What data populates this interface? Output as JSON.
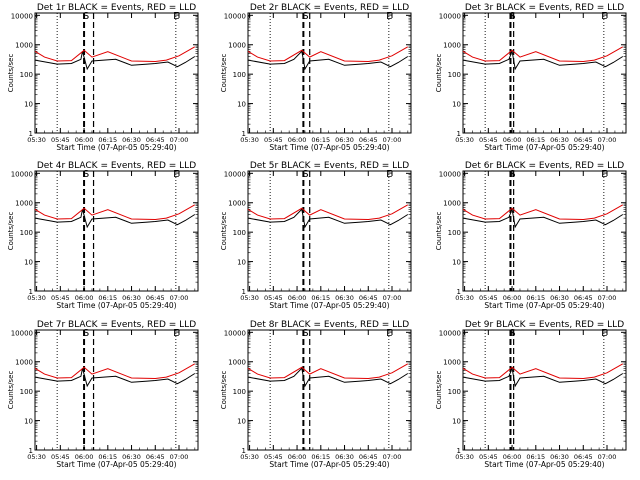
{
  "chart_data": [
    {
      "type": "line",
      "title": "Det 1r BLACK = Events, RED = LLD",
      "xlabel": "Start Time (07-Apr-05 05:29:40)",
      "ylabel": "Counts/sec",
      "marker_S": "S",
      "marker_right": "E",
      "dashed_at": [
        "06:00",
        "06:06"
      ],
      "dotted_at": [
        "05:43",
        "06:58"
      ],
      "x_ticks": [
        "05:30",
        "05:45",
        "06:00",
        "06:15",
        "06:30",
        "06:45",
        "07:00"
      ],
      "y_ticks": [
        "1",
        "10",
        "100",
        "1000",
        "10000"
      ],
      "y_scale": "log",
      "ylim": [
        1,
        12000
      ],
      "series": [
        {
          "color": "#000000",
          "x": [
            "05:29",
            "05:43",
            "05:52",
            "05:58",
            "05:59",
            "06:02",
            "06:05",
            "06:20",
            "06:30",
            "06:40",
            "06:45",
            "06:53",
            "06:59",
            "07:04",
            "07:10"
          ],
          "values": [
            300,
            220,
            230,
            320,
            600,
            150,
            280,
            320,
            200,
            220,
            230,
            260,
            180,
            250,
            400
          ]
        },
        {
          "color": "#e00000",
          "x": [
            "05:29",
            "05:35",
            "05:43",
            "05:52",
            "06:00",
            "06:05",
            "06:15",
            "06:30",
            "06:45",
            "06:52",
            "07:00",
            "07:10"
          ],
          "values": [
            600,
            380,
            280,
            290,
            650,
            380,
            580,
            280,
            270,
            300,
            420,
            850
          ]
        }
      ]
    },
    {
      "type": "line",
      "title": "Det 2r BLACK = Events, RED = LLD",
      "xlabel": "Start Time (07-Apr-05 05:29:40)",
      "ylabel": "Counts/sec",
      "marker_S": "S",
      "marker_right": "E",
      "dashed_at": [
        "06:04",
        "06:08"
      ],
      "dotted_at": [
        "05:43",
        "06:58"
      ],
      "x_ticks": [
        "05:30",
        "05:45",
        "06:00",
        "06:15",
        "06:30",
        "06:45",
        "07:00"
      ],
      "y_ticks": [
        "1",
        "10",
        "100",
        "1000",
        "10000"
      ],
      "y_scale": "log",
      "ylim": [
        1,
        12000
      ],
      "series": [
        {
          "color": "#000000",
          "x": [
            "05:29",
            "05:43",
            "05:52",
            "05:58",
            "06:03",
            "06:05",
            "06:08",
            "06:20",
            "06:30",
            "06:40",
            "06:45",
            "06:53",
            "06:59",
            "07:04",
            "07:10"
          ],
          "values": [
            300,
            220,
            230,
            320,
            600,
            150,
            280,
            320,
            200,
            220,
            230,
            260,
            180,
            250,
            400
          ]
        },
        {
          "color": "#e00000",
          "x": [
            "05:29",
            "05:35",
            "05:43",
            "05:52",
            "06:03",
            "06:08",
            "06:15",
            "06:30",
            "06:45",
            "06:52",
            "07:00",
            "07:10"
          ],
          "values": [
            600,
            380,
            280,
            290,
            650,
            380,
            580,
            280,
            270,
            300,
            420,
            850
          ]
        }
      ]
    },
    {
      "type": "line",
      "title": "Det 3r BLACK = Events, RED = LLD",
      "xlabel": "Start Time (07-Apr-05 05:29:40)",
      "ylabel": "Counts/sec",
      "marker_S": "S",
      "marker_right": "E",
      "dashed_at": [
        "05:59",
        "06:01"
      ],
      "dotted_at": [
        "05:43",
        "06:58"
      ],
      "x_ticks": [
        "05:30",
        "05:45",
        "06:00",
        "06:15",
        "06:30",
        "06:45",
        "07:00"
      ],
      "y_ticks": [
        "1",
        "10",
        "100",
        "1000",
        "10000"
      ],
      "y_scale": "log",
      "ylim": [
        1,
        12000
      ],
      "series": [
        {
          "color": "#000000",
          "x": [
            "05:29",
            "05:43",
            "05:52",
            "05:58",
            "06:00",
            "06:02",
            "06:05",
            "06:20",
            "06:30",
            "06:40",
            "06:45",
            "06:53",
            "06:59",
            "07:04",
            "07:10"
          ],
          "values": [
            300,
            220,
            230,
            320,
            600,
            150,
            280,
            320,
            200,
            220,
            230,
            260,
            180,
            250,
            400
          ]
        },
        {
          "color": "#e00000",
          "x": [
            "05:29",
            "05:35",
            "05:43",
            "05:52",
            "06:00",
            "06:05",
            "06:15",
            "06:30",
            "06:45",
            "06:52",
            "07:00",
            "07:10"
          ],
          "values": [
            600,
            380,
            280,
            290,
            650,
            380,
            580,
            280,
            270,
            300,
            420,
            850
          ]
        }
      ]
    },
    {
      "type": "line",
      "title": "Det 4r BLACK = Events, RED = LLD",
      "xlabel": "Start Time (07-Apr-05 05:29:40)",
      "ylabel": "Counts/sec",
      "marker_S": "S",
      "marker_right": "E",
      "dashed_at": [
        "06:00",
        "06:06"
      ],
      "dotted_at": [
        "05:43",
        "06:58"
      ],
      "x_ticks": [
        "05:30",
        "05:45",
        "06:00",
        "06:15",
        "06:30",
        "06:45",
        "07:00"
      ],
      "y_ticks": [
        "1",
        "10",
        "100",
        "1000",
        "10000"
      ],
      "y_scale": "log",
      "ylim": [
        1,
        12000
      ],
      "series": [
        {
          "color": "#000000",
          "x": [
            "05:29",
            "05:43",
            "05:52",
            "05:58",
            "05:59",
            "06:02",
            "06:05",
            "06:20",
            "06:30",
            "06:40",
            "06:45",
            "06:53",
            "06:59",
            "07:04",
            "07:10"
          ],
          "values": [
            300,
            220,
            230,
            320,
            600,
            150,
            280,
            320,
            200,
            220,
            230,
            260,
            180,
            250,
            400
          ]
        },
        {
          "color": "#e00000",
          "x": [
            "05:29",
            "05:35",
            "05:43",
            "05:52",
            "06:00",
            "06:05",
            "06:15",
            "06:30",
            "06:45",
            "06:52",
            "07:00",
            "07:10"
          ],
          "values": [
            600,
            380,
            280,
            290,
            650,
            380,
            580,
            280,
            270,
            300,
            420,
            850
          ]
        }
      ]
    },
    {
      "type": "line",
      "title": "Det 5r BLACK = Events, RED = LLD",
      "xlabel": "Start Time (07-Apr-05 05:29:40)",
      "ylabel": "Counts/sec",
      "marker_S": "S",
      "marker_right": "E",
      "dashed_at": [
        "06:04",
        "06:08"
      ],
      "dotted_at": [
        "05:43",
        "06:58"
      ],
      "x_ticks": [
        "05:30",
        "05:45",
        "06:00",
        "06:15",
        "06:30",
        "06:45",
        "07:00"
      ],
      "y_ticks": [
        "1",
        "10",
        "100",
        "1000",
        "10000"
      ],
      "y_scale": "log",
      "ylim": [
        1,
        12000
      ],
      "series": [
        {
          "color": "#000000",
          "x": [
            "05:29",
            "05:43",
            "05:52",
            "05:58",
            "06:03",
            "06:05",
            "06:08",
            "06:20",
            "06:30",
            "06:40",
            "06:45",
            "06:53",
            "06:59",
            "07:04",
            "07:10"
          ],
          "values": [
            300,
            220,
            230,
            320,
            600,
            150,
            280,
            320,
            200,
            220,
            230,
            260,
            180,
            250,
            400
          ]
        },
        {
          "color": "#e00000",
          "x": [
            "05:29",
            "05:35",
            "05:43",
            "05:52",
            "06:03",
            "06:08",
            "06:15",
            "06:30",
            "06:45",
            "06:52",
            "07:00",
            "07:10"
          ],
          "values": [
            600,
            380,
            280,
            290,
            650,
            380,
            580,
            280,
            270,
            300,
            420,
            850
          ]
        }
      ]
    },
    {
      "type": "line",
      "title": "Det 6r BLACK = Events, RED = LLD",
      "xlabel": "Start Time (07-Apr-05 05:29:40)",
      "ylabel": "Counts/sec",
      "marker_S": "S",
      "marker_right": "E",
      "dashed_at": [
        "05:59",
        "06:01"
      ],
      "dotted_at": [
        "05:43",
        "06:58"
      ],
      "x_ticks": [
        "05:30",
        "05:45",
        "06:00",
        "06:15",
        "06:30",
        "06:45",
        "07:00"
      ],
      "y_ticks": [
        "1",
        "10",
        "100",
        "1000",
        "10000"
      ],
      "y_scale": "log",
      "ylim": [
        1,
        12000
      ],
      "series": [
        {
          "color": "#000000",
          "x": [
            "05:29",
            "05:43",
            "05:52",
            "05:58",
            "06:00",
            "06:02",
            "06:05",
            "06:20",
            "06:30",
            "06:40",
            "06:45",
            "06:53",
            "06:59",
            "07:04",
            "07:10"
          ],
          "values": [
            300,
            220,
            230,
            320,
            600,
            150,
            280,
            320,
            200,
            220,
            230,
            260,
            180,
            250,
            400
          ]
        },
        {
          "color": "#e00000",
          "x": [
            "05:29",
            "05:35",
            "05:43",
            "05:52",
            "06:00",
            "06:05",
            "06:15",
            "06:30",
            "06:45",
            "06:52",
            "07:00",
            "07:10"
          ],
          "values": [
            600,
            380,
            280,
            290,
            650,
            380,
            580,
            280,
            270,
            300,
            420,
            850
          ]
        }
      ]
    },
    {
      "type": "line",
      "title": "Det 7r BLACK = Events, RED = LLD",
      "xlabel": "Start Time (07-Apr-05 05:29:40)",
      "ylabel": "Counts/sec",
      "marker_S": "S",
      "marker_right": "E",
      "dashed_at": [
        "06:00",
        "06:06"
      ],
      "dotted_at": [
        "05:43",
        "06:58"
      ],
      "x_ticks": [
        "05:30",
        "05:45",
        "06:00",
        "06:15",
        "06:30",
        "06:45",
        "07:00"
      ],
      "y_ticks": [
        "1",
        "10",
        "100",
        "1000",
        "10000"
      ],
      "y_scale": "log",
      "ylim": [
        1,
        12000
      ],
      "series": [
        {
          "color": "#000000",
          "x": [
            "05:29",
            "05:43",
            "05:52",
            "05:58",
            "05:59",
            "06:02",
            "06:05",
            "06:20",
            "06:30",
            "06:40",
            "06:45",
            "06:53",
            "06:59",
            "07:04",
            "07:10"
          ],
          "values": [
            300,
            220,
            230,
            320,
            600,
            150,
            280,
            320,
            200,
            220,
            230,
            260,
            180,
            250,
            400
          ]
        },
        {
          "color": "#e00000",
          "x": [
            "05:29",
            "05:35",
            "05:43",
            "05:52",
            "06:00",
            "06:05",
            "06:15",
            "06:30",
            "06:45",
            "06:52",
            "07:00",
            "07:10"
          ],
          "values": [
            600,
            380,
            280,
            290,
            650,
            380,
            580,
            280,
            270,
            300,
            420,
            850
          ]
        }
      ]
    },
    {
      "type": "line",
      "title": "Det 8r BLACK = Events, RED = LLD",
      "xlabel": "Start Time (07-Apr-05 05:29:40)",
      "ylabel": "Counts/sec",
      "marker_S": "S",
      "marker_right": "E",
      "dashed_at": [
        "06:04",
        "06:08"
      ],
      "dotted_at": [
        "05:43",
        "06:58"
      ],
      "x_ticks": [
        "05:30",
        "05:45",
        "06:00",
        "06:15",
        "06:30",
        "06:45",
        "07:00"
      ],
      "y_ticks": [
        "1",
        "10",
        "100",
        "1000",
        "10000"
      ],
      "y_scale": "log",
      "ylim": [
        1,
        12000
      ],
      "series": [
        {
          "color": "#000000",
          "x": [
            "05:29",
            "05:43",
            "05:52",
            "05:58",
            "06:03",
            "06:05",
            "06:08",
            "06:20",
            "06:30",
            "06:40",
            "06:45",
            "06:53",
            "06:59",
            "07:04",
            "07:10"
          ],
          "values": [
            300,
            220,
            230,
            320,
            600,
            150,
            280,
            320,
            200,
            220,
            230,
            260,
            180,
            250,
            400
          ]
        },
        {
          "color": "#e00000",
          "x": [
            "05:29",
            "05:35",
            "05:43",
            "05:52",
            "06:03",
            "06:08",
            "06:15",
            "06:30",
            "06:45",
            "06:52",
            "07:00",
            "07:10"
          ],
          "values": [
            600,
            380,
            280,
            290,
            650,
            380,
            580,
            280,
            270,
            300,
            420,
            850
          ]
        }
      ]
    },
    {
      "type": "line",
      "title": "Det 9r BLACK = Events, RED = LLD",
      "xlabel": "Start Time (07-Apr-05 05:29:40)",
      "ylabel": "Counts/sec",
      "marker_S": "S",
      "marker_right": "E",
      "dashed_at": [
        "05:59",
        "06:01"
      ],
      "dotted_at": [
        "05:43",
        "06:58"
      ],
      "x_ticks": [
        "05:30",
        "05:45",
        "06:00",
        "06:15",
        "06:30",
        "06:45",
        "07:00"
      ],
      "y_ticks": [
        "1",
        "10",
        "100",
        "1000",
        "10000"
      ],
      "y_scale": "log",
      "ylim": [
        1,
        12000
      ],
      "series": [
        {
          "color": "#000000",
          "x": [
            "05:29",
            "05:43",
            "05:52",
            "05:58",
            "06:00",
            "06:02",
            "06:05",
            "06:20",
            "06:30",
            "06:40",
            "06:45",
            "06:53",
            "06:59",
            "07:04",
            "07:10"
          ],
          "values": [
            300,
            220,
            230,
            320,
            600,
            150,
            280,
            320,
            200,
            220,
            230,
            260,
            180,
            250,
            400
          ]
        },
        {
          "color": "#e00000",
          "x": [
            "05:29",
            "05:35",
            "05:43",
            "05:52",
            "06:00",
            "06:05",
            "06:15",
            "06:30",
            "06:45",
            "06:52",
            "07:00",
            "07:10"
          ],
          "values": [
            600,
            380,
            280,
            290,
            650,
            380,
            580,
            280,
            270,
            300,
            420,
            850
          ]
        }
      ]
    }
  ]
}
